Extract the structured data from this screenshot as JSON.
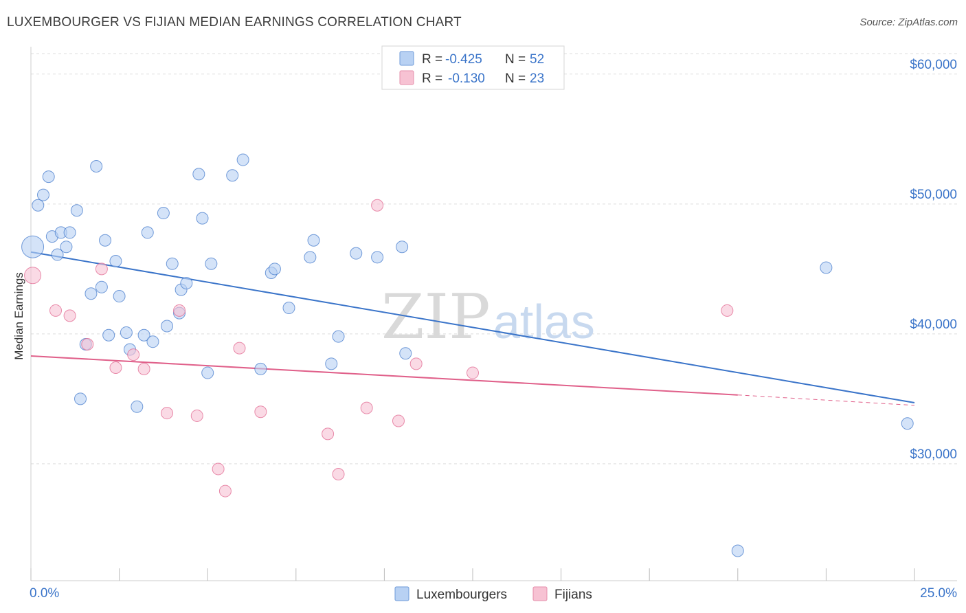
{
  "header": {
    "title": "LUXEMBOURGER VS FIJIAN MEDIAN EARNINGS CORRELATION CHART",
    "source": "Source: ZipAtlas.com"
  },
  "watermark": {
    "zip": "ZIP",
    "atlas": "atlas"
  },
  "colors": {
    "blue": "#3a74c9",
    "blue_fill": "#b8d1f3",
    "pink": "#e0608a",
    "pink_fill": "#f7c2d3",
    "grid": "#dddddd"
  },
  "stats": [
    {
      "r_label": "R =",
      "r_value": "-0.425",
      "n_label": "N =",
      "n_value": "52"
    },
    {
      "r_label": "R =",
      "r_value": "-0.130",
      "n_label": "N =",
      "n_value": "23"
    }
  ],
  "chart_data": {
    "type": "scatter",
    "ylabel": "Median Earnings",
    "xlim": [
      0,
      25
    ],
    "ylim": [
      21000,
      62000
    ],
    "x_tick_labels": [
      "0.0%",
      "25.0%"
    ],
    "y_ticks": [
      {
        "value": 30000,
        "label": "$30,000"
      },
      {
        "value": 40000,
        "label": "$40,000"
      },
      {
        "value": 50000,
        "label": "$50,000"
      },
      {
        "value": 60000,
        "label": "$60,000"
      }
    ],
    "legend_position": "bottom-center",
    "series": [
      {
        "name": "Luxembourgers",
        "color": "#3a74c9",
        "fill": "#b8d1f3",
        "trend": {
          "x0": 0,
          "y0": 46300,
          "x1": 25,
          "y1": 34700
        },
        "points": [
          [
            0.05,
            46700
          ],
          [
            0.2,
            49900
          ],
          [
            0.35,
            50700
          ],
          [
            0.5,
            52100
          ],
          [
            0.6,
            47500
          ],
          [
            0.75,
            46100
          ],
          [
            0.85,
            47800
          ],
          [
            1.0,
            46700
          ],
          [
            1.1,
            47800
          ],
          [
            1.3,
            49500
          ],
          [
            1.4,
            35000
          ],
          [
            1.55,
            39200
          ],
          [
            1.7,
            43100
          ],
          [
            1.85,
            52900
          ],
          [
            2.0,
            43600
          ],
          [
            2.1,
            47200
          ],
          [
            2.2,
            39900
          ],
          [
            2.4,
            45600
          ],
          [
            2.5,
            42900
          ],
          [
            2.7,
            40100
          ],
          [
            2.8,
            38800
          ],
          [
            3.0,
            34400
          ],
          [
            3.2,
            39900
          ],
          [
            3.3,
            47800
          ],
          [
            3.45,
            39400
          ],
          [
            3.75,
            49300
          ],
          [
            3.85,
            40600
          ],
          [
            4.0,
            45400
          ],
          [
            4.2,
            41600
          ],
          [
            4.25,
            43400
          ],
          [
            4.4,
            43900
          ],
          [
            4.75,
            52300
          ],
          [
            4.85,
            48900
          ],
          [
            5.0,
            37000
          ],
          [
            5.1,
            45400
          ],
          [
            5.7,
            52200
          ],
          [
            6.0,
            53400
          ],
          [
            6.5,
            37300
          ],
          [
            6.8,
            44700
          ],
          [
            6.9,
            45000
          ],
          [
            7.3,
            42000
          ],
          [
            7.9,
            45900
          ],
          [
            8.0,
            47200
          ],
          [
            8.5,
            37700
          ],
          [
            8.7,
            39800
          ],
          [
            9.2,
            46200
          ],
          [
            9.8,
            45900
          ],
          [
            10.5,
            46700
          ],
          [
            10.6,
            38500
          ],
          [
            22.5,
            45100
          ],
          [
            20.0,
            23300
          ],
          [
            24.8,
            33100
          ]
        ],
        "big_point_index": 0
      },
      {
        "name": "Fijians",
        "color": "#e0608a",
        "fill": "#f7c2d3",
        "trend": {
          "x0": 0,
          "y0": 38300,
          "x1": 20,
          "y1": 35300,
          "dash_to_x": 25,
          "dash_to_y": 34500
        },
        "points": [
          [
            0.05,
            44500
          ],
          [
            0.7,
            41800
          ],
          [
            1.1,
            41400
          ],
          [
            1.6,
            39200
          ],
          [
            2.0,
            45000
          ],
          [
            2.4,
            37400
          ],
          [
            2.9,
            38400
          ],
          [
            3.2,
            37300
          ],
          [
            3.85,
            33900
          ],
          [
            4.2,
            41800
          ],
          [
            4.7,
            33700
          ],
          [
            5.3,
            29600
          ],
          [
            5.5,
            27900
          ],
          [
            5.9,
            38900
          ],
          [
            6.5,
            34000
          ],
          [
            8.4,
            32300
          ],
          [
            8.7,
            29200
          ],
          [
            9.5,
            34300
          ],
          [
            9.8,
            49900
          ],
          [
            10.4,
            33300
          ],
          [
            10.9,
            37700
          ],
          [
            12.5,
            37000
          ],
          [
            19.7,
            41800
          ]
        ],
        "big_point_index": 0
      }
    ]
  }
}
